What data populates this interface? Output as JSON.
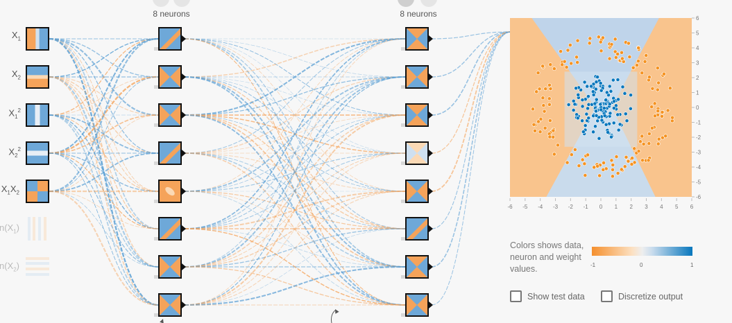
{
  "layers": [
    {
      "title": "8 neurons"
    },
    {
      "title": "8 neurons"
    }
  ],
  "inputs": [
    {
      "base": "X",
      "sub": "1",
      "sup": "",
      "prefix": ""
    },
    {
      "base": "X",
      "sub": "2",
      "sup": "",
      "prefix": ""
    },
    {
      "base": "X",
      "sub": "1",
      "sup": "2",
      "prefix": ""
    },
    {
      "base": "X",
      "sub": "2",
      "sup": "2",
      "prefix": ""
    },
    {
      "base": "X",
      "sub": "1",
      "sup": "",
      "prefix": "",
      "label2": "X",
      "sub2": "2"
    },
    {
      "base": "n(X",
      "sub": "1",
      "sup": "",
      "prefix": "",
      "suffix": ")"
    },
    {
      "base": "n(X",
      "sub": "2",
      "sup": "",
      "prefix": "",
      "suffix": ")"
    }
  ],
  "legend": {
    "text": "Colors shows data, neuron and weight values.",
    "ticks": [
      "-1",
      "0",
      "1"
    ],
    "color_negative": "#f5902e",
    "color_positive": "#0877bd"
  },
  "plot": {
    "x_ticks": [
      "-6",
      "-5",
      "-4",
      "-3",
      "-2",
      "-1",
      "0",
      "1",
      "2",
      "3",
      "4",
      "5",
      "6"
    ],
    "y_ticks": [
      "6",
      "5",
      "4",
      "3",
      "2",
      "1",
      "0",
      "-1",
      "-2",
      "-3",
      "-4",
      "-5",
      "-6"
    ],
    "x_range": [
      -6,
      6
    ],
    "y_range": [
      -6,
      6
    ],
    "point_color_positive": "#0877bd",
    "point_color_negative": "#f59322"
  },
  "options": {
    "show_test_data": "Show test data",
    "discretize_output": "Discretize output"
  }
}
